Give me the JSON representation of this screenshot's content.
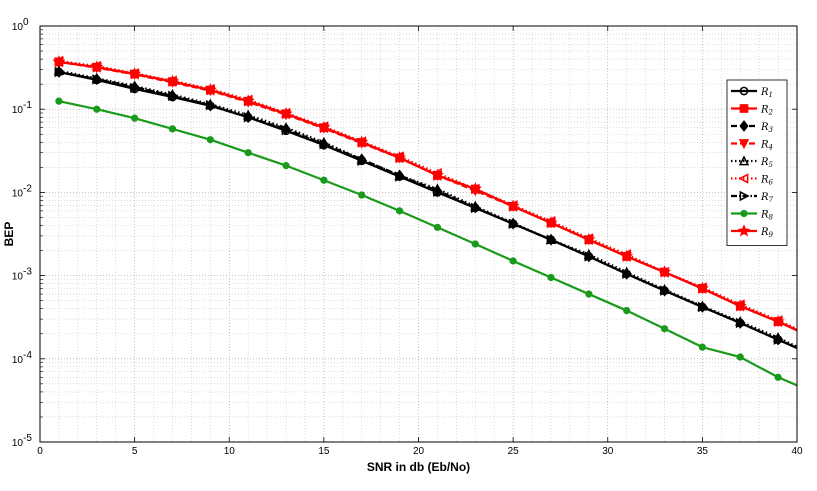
{
  "chart_data": {
    "type": "line",
    "xlabel": "SNR in db (Eb/No)",
    "ylabel": "BEP",
    "xlim": [
      0,
      40
    ],
    "ylim": [
      1e-05,
      1
    ],
    "yscale": "log",
    "grid": true,
    "legend_position": "right",
    "x_ticks": [
      "0",
      "5",
      "10",
      "15",
      "20",
      "25",
      "30",
      "35",
      "40"
    ],
    "y_ticks": [
      {
        "base": "10",
        "exp": "0"
      },
      {
        "base": "10",
        "exp": "-1"
      },
      {
        "base": "10",
        "exp": "-2"
      },
      {
        "base": "10",
        "exp": "-3"
      },
      {
        "base": "10",
        "exp": "-4"
      },
      {
        "base": "10",
        "exp": "-5"
      }
    ],
    "x": [
      1,
      3,
      5,
      7,
      9,
      11,
      13,
      15,
      17,
      19,
      21,
      23,
      25,
      27,
      29,
      31,
      33,
      35,
      37,
      39
    ],
    "x_end": 40,
    "series": [
      {
        "name": "R",
        "sub": "1",
        "color": "#000000",
        "dash": "solid",
        "marker": "circle",
        "values": [
          0.28,
          0.225,
          0.175,
          0.14,
          0.11,
          0.08,
          0.055,
          0.037,
          0.024,
          0.0155,
          0.01,
          0.0065,
          0.0042,
          0.0027,
          0.0017,
          0.00105,
          0.00066,
          0.00042,
          0.00027,
          0.00017
        ],
        "end": 0.000135
      },
      {
        "name": "R",
        "sub": "2",
        "color": "#ff0000",
        "dash": "solid",
        "marker": "square",
        "values": [
          0.37,
          0.32,
          0.265,
          0.215,
          0.17,
          0.125,
          0.088,
          0.06,
          0.04,
          0.026,
          0.016,
          0.011,
          0.0068,
          0.0043,
          0.0027,
          0.0017,
          0.0011,
          0.0007,
          0.00043,
          0.00028
        ],
        "end": 0.00022
      },
      {
        "name": "R",
        "sub": "3",
        "color": "#000000",
        "dash": "dashed",
        "marker": "diamond",
        "values": [
          0.28,
          0.23,
          0.185,
          0.145,
          0.11,
          0.08,
          0.058,
          0.038,
          0.025,
          0.016,
          0.0105,
          0.0066,
          0.0042,
          0.0027,
          0.0017,
          0.00105,
          0.00066,
          0.00042,
          0.00027,
          0.00017
        ],
        "end": 0.000135
      },
      {
        "name": "R",
        "sub": "4",
        "color": "#ff0000",
        "dash": "dashed",
        "marker": "triangle-down",
        "values": [
          0.37,
          0.315,
          0.262,
          0.21,
          0.167,
          0.122,
          0.086,
          0.059,
          0.039,
          0.026,
          0.016,
          0.0105,
          0.0068,
          0.0043,
          0.0027,
          0.0017,
          0.0011,
          0.0007,
          0.00043,
          0.00028
        ],
        "end": 0.00022
      },
      {
        "name": "R",
        "sub": "5",
        "color": "#000000",
        "dash": "dotted",
        "marker": "triangle-up",
        "values": [
          0.29,
          0.235,
          0.19,
          0.15,
          0.115,
          0.085,
          0.06,
          0.04,
          0.025,
          0.016,
          0.011,
          0.0068,
          0.0043,
          0.0027,
          0.0018,
          0.0011,
          0.00068,
          0.00043,
          0.00028,
          0.00018
        ],
        "end": 0.00014
      },
      {
        "name": "R",
        "sub": "6",
        "color": "#ff0000",
        "dash": "dotted",
        "marker": "triangle-left",
        "values": [
          0.38,
          0.33,
          0.27,
          0.22,
          0.175,
          0.13,
          0.09,
          0.062,
          0.041,
          0.027,
          0.017,
          0.011,
          0.007,
          0.0045,
          0.0028,
          0.0018,
          0.0011,
          0.00072,
          0.00045,
          0.00029
        ],
        "end": 0.00023
      },
      {
        "name": "R",
        "sub": "7",
        "color": "#000000",
        "dash": "dashdot",
        "marker": "triangle-right",
        "values": [
          0.28,
          0.228,
          0.18,
          0.145,
          0.112,
          0.08,
          0.056,
          0.038,
          0.024,
          0.0155,
          0.0102,
          0.0065,
          0.0042,
          0.0027,
          0.0017,
          0.00105,
          0.00066,
          0.00042,
          0.00027,
          0.00017
        ],
        "end": 0.000135
      },
      {
        "name": "R",
        "sub": "8",
        "color": "#1a9a1a",
        "dash": "solid",
        "marker": "dot",
        "values": [
          0.125,
          0.1,
          0.078,
          0.058,
          0.043,
          0.03,
          0.021,
          0.014,
          0.0093,
          0.006,
          0.0038,
          0.0024,
          0.0015,
          0.00095,
          0.0006,
          0.00038,
          0.00023,
          0.000138,
          0.000105,
          6e-05
        ],
        "end": 4.8e-05
      },
      {
        "name": "R",
        "sub": "9",
        "color": "#ff0000",
        "dash": "solid",
        "marker": "star",
        "values": [
          0.37,
          0.32,
          0.265,
          0.215,
          0.17,
          0.125,
          0.088,
          0.06,
          0.04,
          0.026,
          0.016,
          0.011,
          0.0068,
          0.0043,
          0.0027,
          0.0017,
          0.0011,
          0.0007,
          0.00043,
          0.00028
        ],
        "end": 0.00022
      }
    ]
  }
}
